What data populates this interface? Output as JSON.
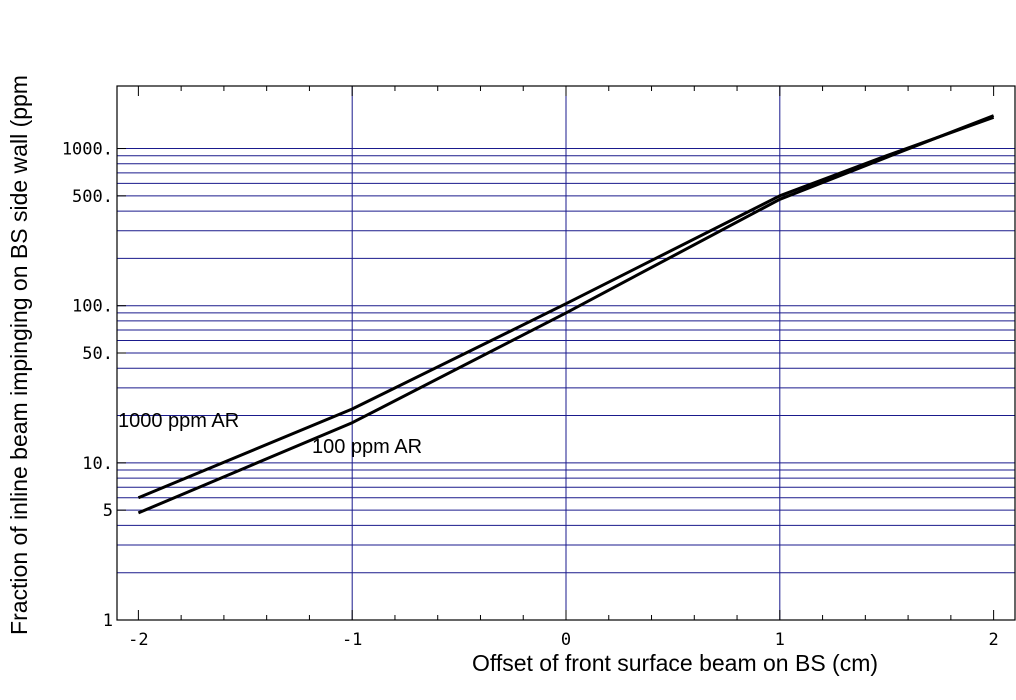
{
  "chart_data": {
    "type": "line",
    "title": "",
    "xlabel": "Offset of front surface beam on BS  (cm)",
    "ylabel": "Fraction of inline beam impinging on BS side wall (ppm",
    "xscale": "linear",
    "yscale": "log",
    "xlim": [
      -2.1,
      2.1
    ],
    "ylim": [
      1,
      2500
    ],
    "x_ticks": [
      {
        "value": -2,
        "label": "-2"
      },
      {
        "value": -1,
        "label": "-1"
      },
      {
        "value": 0,
        "label": "0"
      },
      {
        "value": 1,
        "label": "1"
      },
      {
        "value": 2,
        "label": "2"
      }
    ],
    "y_ticks": [
      {
        "value": 1,
        "label": "1"
      },
      {
        "value": 5,
        "label": "5"
      },
      {
        "value": 10,
        "label": "10."
      },
      {
        "value": 50,
        "label": "50."
      },
      {
        "value": 100,
        "label": "100."
      },
      {
        "value": 500,
        "label": "500."
      },
      {
        "value": 1000,
        "label": "1000."
      }
    ],
    "grid": true,
    "vertical_grid_x": [
      -1,
      0,
      1
    ],
    "horizontal_grid_y": [
      2,
      3,
      4,
      5,
      6,
      7,
      8,
      9,
      10,
      20,
      30,
      40,
      50,
      60,
      70,
      80,
      90,
      100,
      200,
      300,
      400,
      500,
      600,
      700,
      800,
      900,
      1000
    ],
    "grid_color": "#1a1a8c",
    "line_color": "#000000",
    "series": [
      {
        "name": "1000 ppm AR",
        "x": [
          -2,
          -1,
          0,
          1,
          1.5,
          2
        ],
        "y": [
          6,
          22,
          103,
          500,
          900,
          1580
        ]
      },
      {
        "name": "100 ppm AR",
        "x": [
          -2,
          -1,
          0,
          1,
          1.5,
          2
        ],
        "y": [
          4.8,
          18,
          90,
          475,
          880,
          1620
        ]
      }
    ],
    "annotations": [
      {
        "text": "1000 ppm AR",
        "series": "1000 ppm AR"
      },
      {
        "text": "100 ppm AR",
        "series": "100 ppm AR"
      }
    ]
  }
}
